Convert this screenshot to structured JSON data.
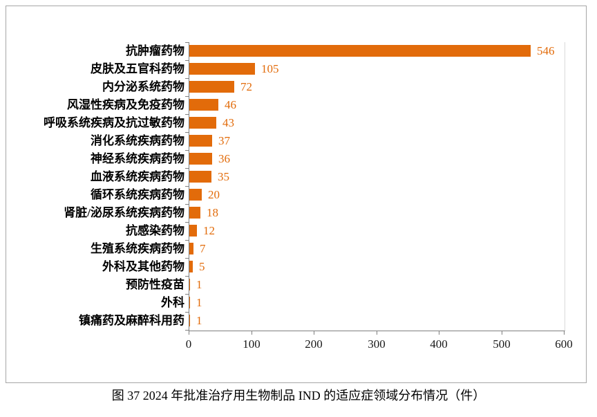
{
  "chart_data": {
    "type": "bar",
    "orientation": "horizontal",
    "title": "",
    "xlabel": "",
    "ylabel": "",
    "xlim": [
      0,
      600
    ],
    "x_ticks": [
      0,
      100,
      200,
      300,
      400,
      500,
      600
    ],
    "grid": false,
    "legend": false,
    "bar_color": "#e26b0a",
    "value_label_color": "#e26b0a",
    "axis_color": "#7f7f7f",
    "categories": [
      "抗肿瘤药物",
      "皮肤及五官科药物",
      "内分泌系统药物",
      "风湿性疾病及免疫药物",
      "呼吸系统疾病及抗过敏药物",
      "消化系统疾病药物",
      "神经系统疾病药物",
      "血液系统疾病药物",
      "循环系统疾病药物",
      "肾脏/泌尿系统疾病药物",
      "抗感染药物",
      "生殖系统疾病药物",
      "外科及其他药物",
      "预防性疫苗",
      "外科",
      "镇痛药及麻醉科用药"
    ],
    "values": [
      546,
      105,
      72,
      46,
      43,
      37,
      36,
      35,
      20,
      18,
      12,
      7,
      5,
      1,
      1,
      1
    ]
  },
  "caption": "图 37  2024 年批准治疗用生物制品 IND 的适应症领域分布情况（件）"
}
